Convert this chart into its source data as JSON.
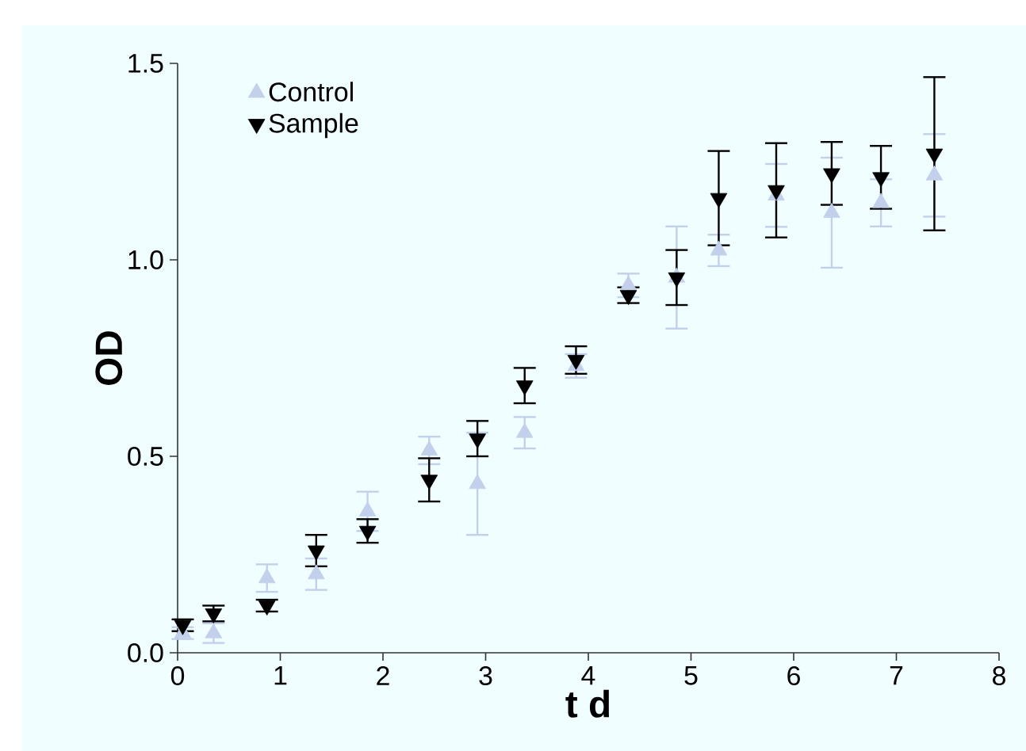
{
  "chart_data": {
    "type": "scatter",
    "xlabel": "t d",
    "ylabel": "OD",
    "xlim": [
      0,
      8
    ],
    "ylim": [
      0,
      1.5
    ],
    "xticks": [
      0,
      1,
      2,
      3,
      4,
      5,
      6,
      7,
      8
    ],
    "yticks": [
      {
        "value": 0,
        "label": "0.0"
      },
      {
        "value": 0.5,
        "label": "0.5"
      },
      {
        "value": 1,
        "label": "1.0"
      },
      {
        "value": 1.5,
        "label": "1.5"
      }
    ],
    "legend": "top left",
    "grid": false,
    "x": [
      0.05,
      0.35,
      0.87,
      1.35,
      1.85,
      2.45,
      2.92,
      3.38,
      3.88,
      4.39,
      4.86,
      5.27,
      5.83,
      6.37,
      6.85,
      7.37
    ],
    "series": [
      {
        "name": "Control",
        "color": "#c3d0ec",
        "marker": "triangle",
        "values": [
          0.05,
          0.05,
          0.19,
          0.2,
          0.36,
          0.515,
          0.43,
          0.56,
          0.73,
          0.935,
          0.955,
          1.024,
          1.164,
          1.12,
          1.145,
          1.215
        ],
        "errors": [
          0.015,
          0.025,
          0.035,
          0.04,
          0.05,
          0.035,
          0.13,
          0.04,
          0.03,
          0.03,
          0.13,
          0.04,
          0.08,
          0.14,
          0.06,
          0.105
        ]
      },
      {
        "name": "Sample",
        "color": "#000000",
        "marker": "triangle-down",
        "values": [
          0.07,
          0.1,
          0.12,
          0.26,
          0.31,
          0.44,
          0.545,
          0.68,
          0.745,
          0.91,
          0.955,
          1.157,
          1.177,
          1.22,
          1.21,
          1.27
        ],
        "errors": [
          0.015,
          0.02,
          0.015,
          0.04,
          0.03,
          0.055,
          0.045,
          0.045,
          0.035,
          0.02,
          0.07,
          0.12,
          0.12,
          0.08,
          0.08,
          0.195
        ]
      }
    ]
  }
}
